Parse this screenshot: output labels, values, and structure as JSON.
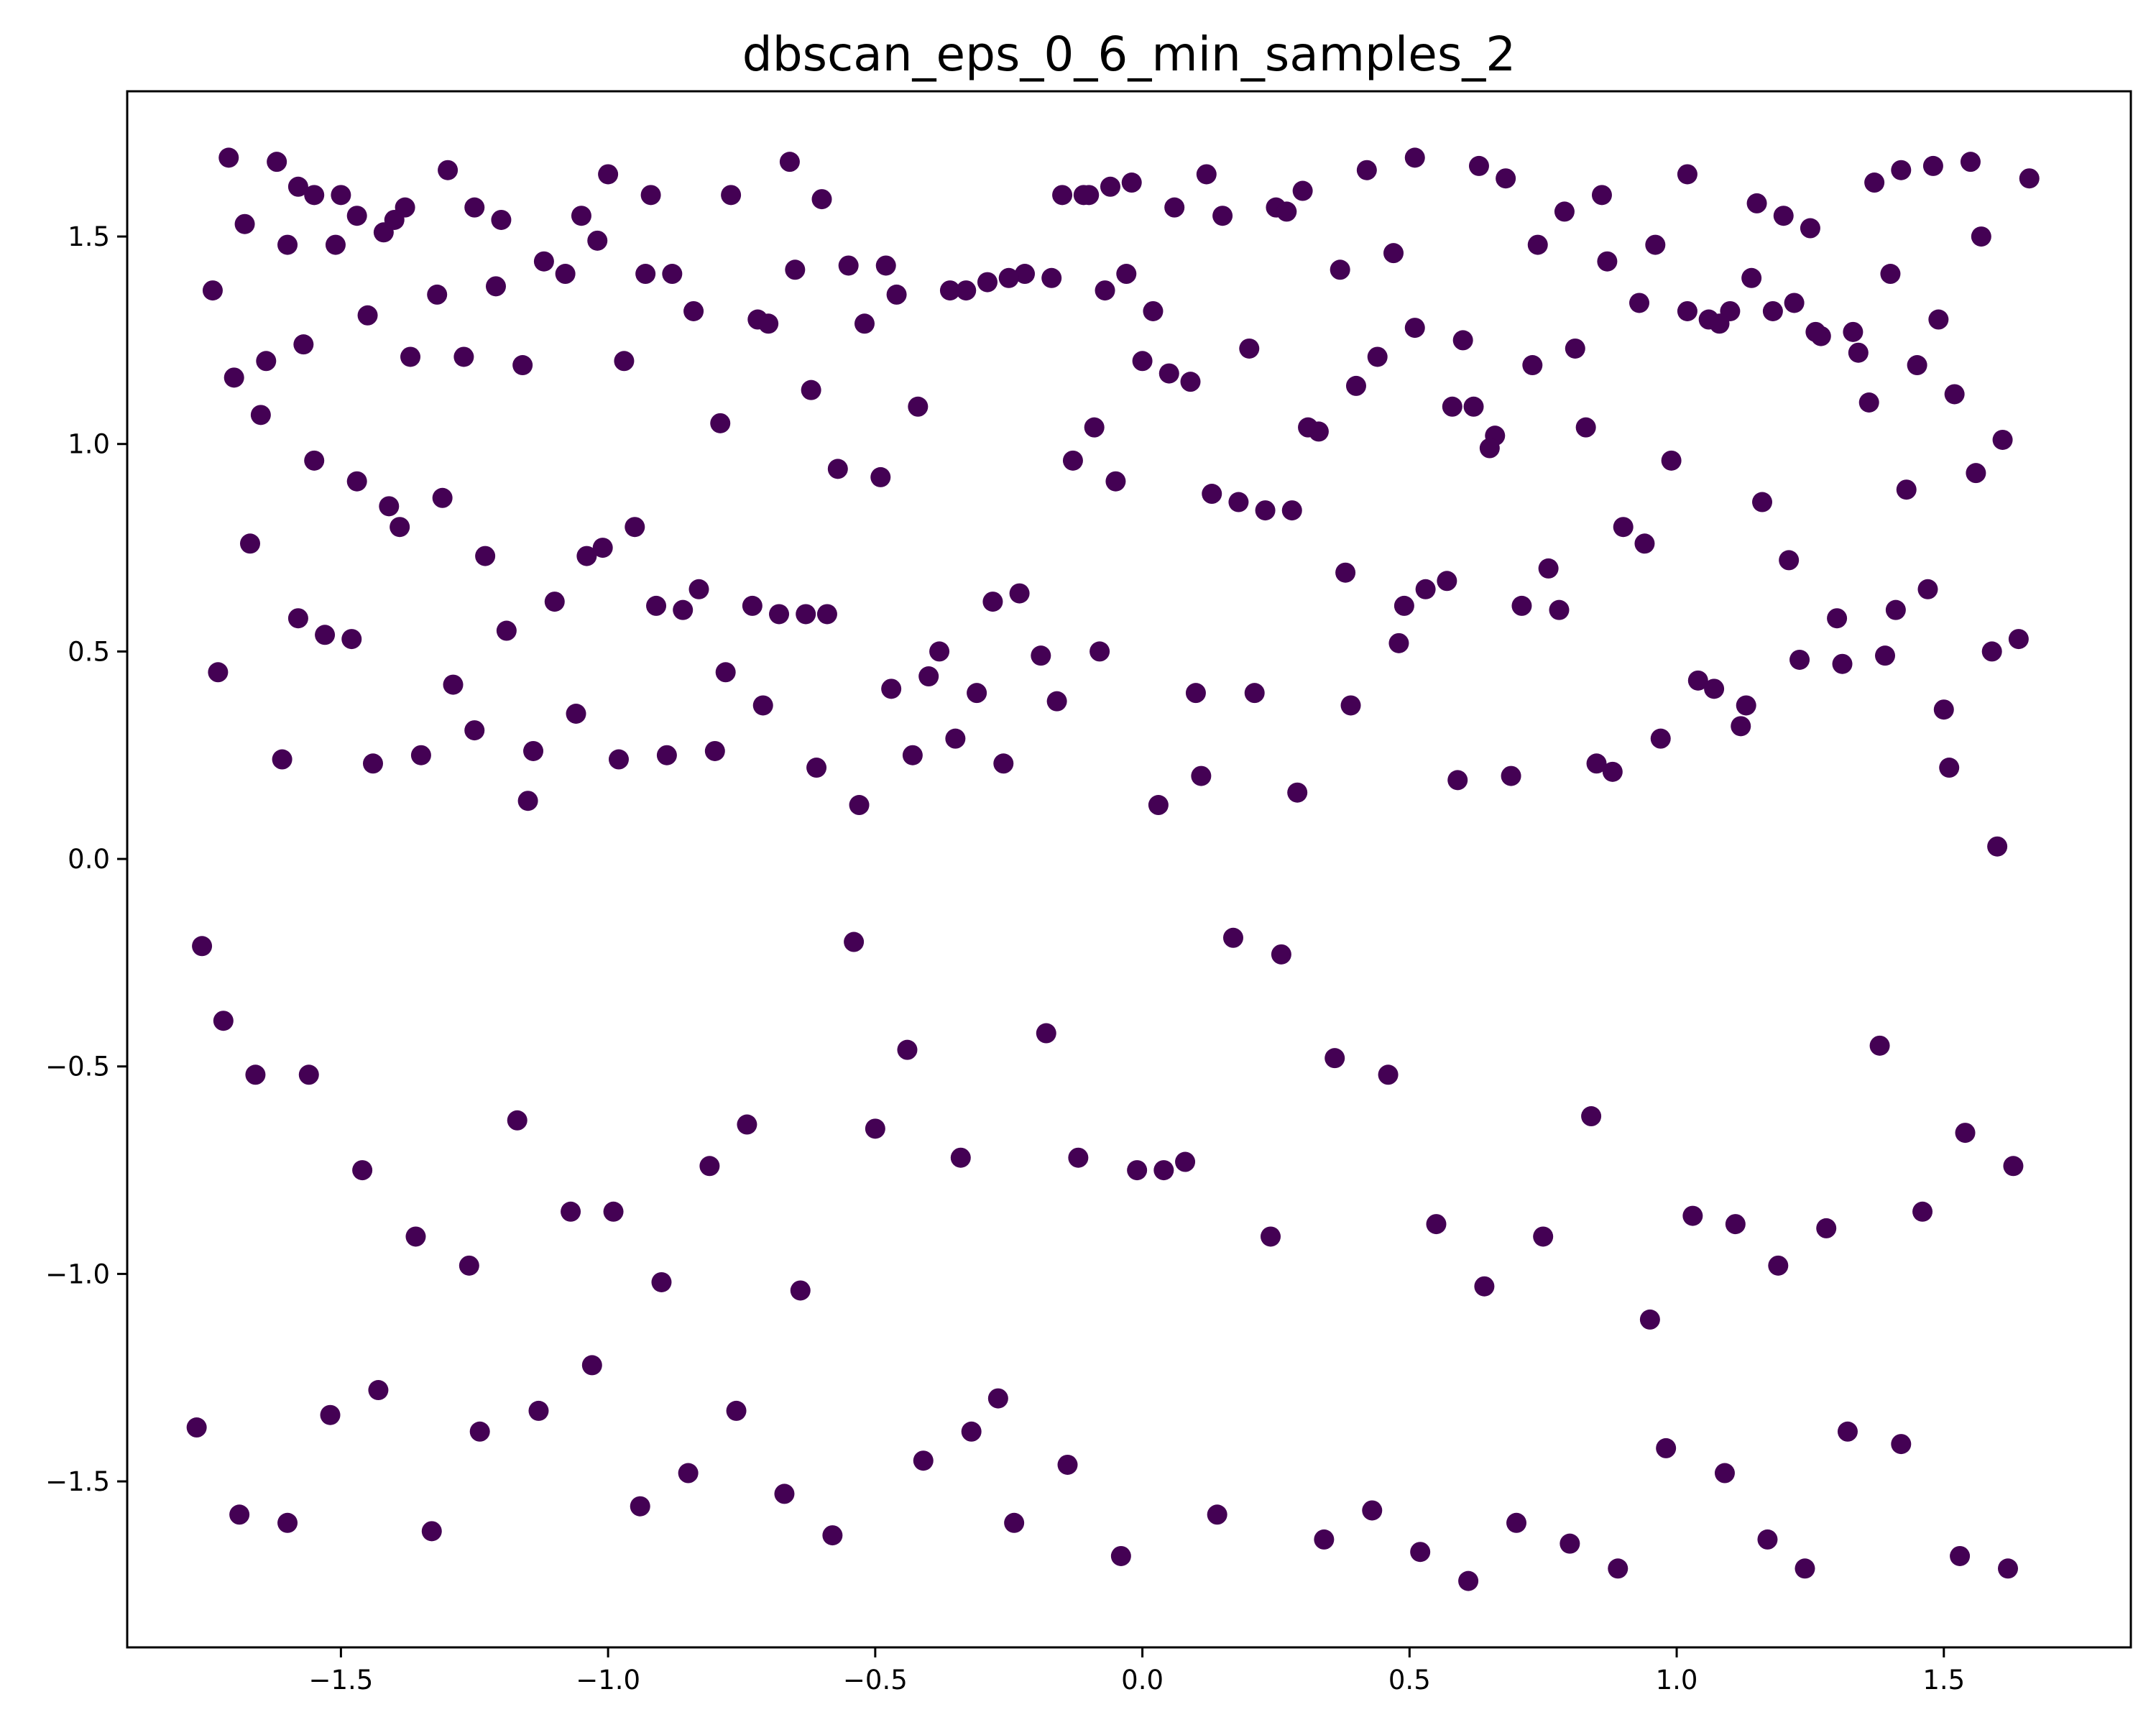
{
  "chart_data": {
    "type": "scatter",
    "title": "dbscan_eps_0_6_min_samples_2",
    "xlabel": "",
    "ylabel": "",
    "xlim": [
      -1.9,
      1.85
    ],
    "ylim": [
      -1.9,
      1.85
    ],
    "grid": false,
    "legend": "none",
    "marker_color": "#440154",
    "xticks": [
      -1.5,
      -1.0,
      -0.5,
      0.0,
      0.5,
      1.0,
      1.5
    ],
    "yticks": [
      -1.5,
      -1.0,
      -0.5,
      0.0,
      0.5,
      1.0,
      1.5
    ],
    "xtick_labels": [
      "−1.5",
      "−1.0",
      "−0.5",
      "0.0",
      "0.5",
      "1.0",
      "1.5"
    ],
    "ytick_labels": [
      "−1.5",
      "−1.0",
      "−0.5",
      "0.0",
      "0.5",
      "1.0",
      "1.5"
    ],
    "series": [
      {
        "x": [
          -1.71,
          -1.62,
          -1.58,
          -1.55,
          -1.5,
          -1.47,
          -1.42,
          -1.38,
          -1.3,
          -1.25,
          -1.2,
          -1.05,
          -1.0,
          -0.92,
          -0.77,
          -0.66,
          -0.6,
          -0.48,
          -0.15,
          -0.1,
          -0.06,
          -0.02,
          0.12,
          0.25,
          0.3,
          0.42,
          0.51,
          0.63,
          0.68,
          0.79,
          0.86,
          1.02,
          1.15,
          1.2,
          1.25,
          1.37,
          1.42,
          1.48,
          1.55,
          1.66,
          -1.74,
          -1.68,
          -1.6,
          -1.51,
          -1.4,
          -1.32,
          -1.21,
          -1.12,
          -1.02,
          -0.93,
          -0.84,
          -0.72,
          -0.65,
          -0.55,
          -0.46,
          -0.36,
          -0.29,
          -0.22,
          -0.11,
          -0.03,
          0.06,
          0.15,
          0.27,
          0.37,
          0.47,
          0.6,
          0.74,
          0.87,
          0.96,
          1.06,
          1.14,
          1.22,
          1.33,
          1.4,
          1.49,
          1.57,
          -1.7,
          -1.64,
          -1.57,
          -1.45,
          -1.37,
          -1.27,
          -1.16,
          -1.08,
          -0.97,
          -0.88,
          -0.79,
          -0.7,
          -0.62,
          -0.52,
          -0.42,
          -0.33,
          -0.25,
          -0.17,
          -0.07,
          0.02,
          0.09,
          0.2,
          0.31,
          0.4,
          0.51,
          0.58,
          0.66,
          0.73,
          0.83,
          0.93,
          1.02,
          1.1,
          1.18,
          1.27,
          1.36,
          1.45,
          1.52,
          1.61,
          -1.73,
          -1.65,
          -1.55,
          -1.47,
          -1.41,
          -1.31,
          -1.23,
          -1.14,
          -1.04,
          -0.95,
          -0.86,
          -0.78,
          -0.68,
          -0.59,
          -0.49,
          -0.4,
          -0.31,
          -0.23,
          -0.13,
          -0.05,
          0.05,
          0.13,
          0.23,
          0.33,
          0.44,
          0.53,
          0.62,
          0.71,
          0.81,
          0.9,
          0.99,
          1.08,
          1.16,
          1.26,
          1.34,
          1.43,
          1.5,
          1.59,
          -1.76,
          -1.67,
          -1.58,
          -1.48,
          -1.39,
          -1.29,
          -1.19,
          -1.1,
          -1.01,
          -0.91,
          -0.83,
          -0.73,
          -0.63,
          -0.57,
          -0.47,
          -0.38,
          -0.28,
          -0.19,
          -0.09,
          0.0,
          0.1,
          0.18,
          0.28,
          0.38,
          0.48,
          0.57,
          0.65,
          0.76,
          0.85,
          0.94,
          1.04,
          1.12,
          1.21,
          1.3,
          1.39,
          1.47,
          1.56,
          1.64,
          -1.72,
          -1.61,
          -1.53,
          -1.44,
          -1.35,
          -1.25,
          -1.15,
          -1.06,
          -0.98,
          -0.89,
          -0.8,
          -0.71,
          -0.61,
          -0.53,
          -0.43,
          -0.35,
          -0.26,
          -0.16,
          -0.08,
          0.03,
          0.11,
          0.21,
          0.29,
          0.39,
          0.49,
          0.59,
          0.69,
          0.78,
          0.88,
          0.97,
          1.07,
          1.13,
          1.23,
          1.31,
          1.41,
          1.51,
          1.6,
          -1.77,
          -1.66,
          -1.56,
          -1.46,
          -1.36,
          -1.26,
          -1.17,
          -1.07,
          -0.99,
          -0.9,
          -0.81,
          -0.74,
          -0.64,
          -0.54,
          -0.44,
          -0.34,
          -0.27,
          -0.18,
          -0.12,
          -0.01,
          0.08,
          0.17,
          0.26,
          0.36,
          0.46,
          0.55,
          0.64,
          0.75,
          0.84,
          0.95,
          1.03,
          1.11,
          1.19,
          1.28,
          1.38,
          1.46,
          1.54,
          1.63,
          -1.69,
          -1.6,
          -1.52,
          -1.43,
          -1.33,
          -1.24,
          -1.13,
          -1.03,
          -0.94,
          -0.85,
          -0.76,
          -0.67,
          -0.58,
          -0.5,
          -0.41,
          -0.32,
          -0.24,
          -0.14,
          -0.04,
          0.04,
          0.14,
          0.24,
          0.34,
          0.43,
          0.52,
          0.61,
          0.7,
          0.8,
          0.89,
          0.98,
          1.09,
          1.17,
          1.24,
          1.32,
          1.42,
          1.53,
          1.62
        ],
        "y": [
          1.69,
          1.68,
          1.62,
          1.6,
          1.6,
          1.55,
          1.51,
          1.57,
          1.66,
          1.57,
          1.54,
          1.55,
          1.65,
          1.6,
          1.6,
          1.68,
          1.59,
          1.43,
          1.6,
          1.6,
          1.62,
          1.63,
          1.65,
          1.57,
          1.61,
          1.66,
          1.69,
          1.67,
          1.64,
          1.56,
          1.6,
          1.65,
          1.58,
          1.55,
          1.52,
          1.63,
          1.66,
          1.67,
          1.68,
          1.64,
          1.37,
          1.53,
          1.48,
          1.48,
          1.54,
          1.36,
          1.38,
          1.44,
          1.49,
          1.41,
          1.32,
          1.3,
          1.42,
          1.43,
          1.36,
          1.37,
          1.39,
          1.41,
          1.6,
          1.41,
          1.57,
          1.55,
          1.56,
          1.42,
          1.46,
          1.25,
          1.48,
          1.44,
          1.48,
          1.3,
          1.4,
          1.34,
          1.27,
          1.41,
          1.3,
          1.5,
          1.16,
          1.2,
          1.24,
          1.31,
          1.21,
          1.21,
          1.19,
          1.41,
          1.2,
          1.41,
          1.05,
          1.29,
          1.13,
          1.29,
          1.09,
          1.37,
          1.4,
          1.4,
          1.37,
          1.32,
          1.15,
          1.23,
          1.04,
          1.14,
          1.28,
          1.09,
          1.02,
          1.19,
          1.04,
          1.34,
          1.32,
          1.32,
          1.32,
          1.26,
          1.1,
          1.19,
          1.12,
          1.01,
          0.45,
          1.07,
          0.96,
          0.91,
          0.85,
          0.87,
          0.73,
          0.26,
          0.73,
          0.8,
          0.6,
          0.45,
          0.59,
          0.59,
          0.92,
          0.44,
          0.4,
          0.64,
          0.96,
          0.91,
          1.17,
          0.88,
          0.84,
          1.03,
          1.21,
          0.65,
          1.09,
          0.61,
          1.23,
          0.8,
          0.96,
          1.29,
          0.86,
          1.27,
          1.22,
          0.89,
          0.36,
          0.5,
          -0.21,
          0.76,
          0.58,
          0.53,
          0.8,
          0.42,
          0.55,
          0.62,
          0.75,
          0.61,
          0.65,
          0.61,
          0.59,
          0.94,
          0.41,
          0.5,
          0.62,
          0.49,
          1.04,
          1.2,
          0.4,
          0.86,
          0.84,
          0.69,
          0.52,
          0.67,
          0.99,
          0.7,
          0.23,
          0.76,
          0.43,
          0.32,
          0.72,
          0.58,
          0.49,
          0.65,
          0.93,
          0.53,
          -0.39,
          0.24,
          0.54,
          0.23,
          0.25,
          0.31,
          0.14,
          0.35,
          0.24,
          0.25,
          0.26,
          0.37,
          0.22,
          0.13,
          0.25,
          0.29,
          0.23,
          0.38,
          0.5,
          0.13,
          0.2,
          0.4,
          0.16,
          0.37,
          0.61,
          0.19,
          0.2,
          0.6,
          0.21,
          0.29,
          0.41,
          0.37,
          0.48,
          0.47,
          0.6,
          0.22,
          0.03,
          -1.37,
          -0.52,
          -0.52,
          -0.75,
          -0.91,
          -0.98,
          -0.63,
          -0.85,
          -0.85,
          -1.02,
          -0.74,
          -0.64,
          -1.04,
          -0.2,
          -0.46,
          -0.72,
          -1.3,
          -0.42,
          -0.72,
          -0.75,
          -0.73,
          -0.19,
          -0.23,
          -0.48,
          -0.52,
          -0.88,
          -1.03,
          -0.91,
          -0.62,
          -1.11,
          -0.86,
          -0.88,
          -0.98,
          -0.89,
          -0.45,
          -0.85,
          -0.66,
          -0.74,
          -1.58,
          -1.6,
          -1.34,
          -1.28,
          -1.62,
          -1.38,
          -1.33,
          -1.22,
          -1.56,
          -1.48,
          -1.33,
          -1.53,
          -1.63,
          -0.65,
          -1.45,
          -1.38,
          -1.6,
          -1.46,
          -1.68,
          -0.75,
          -1.58,
          -0.91,
          -1.64,
          -1.57,
          -1.67,
          -1.74,
          -1.6,
          -1.65,
          -1.71,
          -1.42,
          -1.48,
          -1.64,
          -1.71,
          -1.38,
          -1.41,
          -1.68,
          -1.71
        ]
      }
    ]
  }
}
